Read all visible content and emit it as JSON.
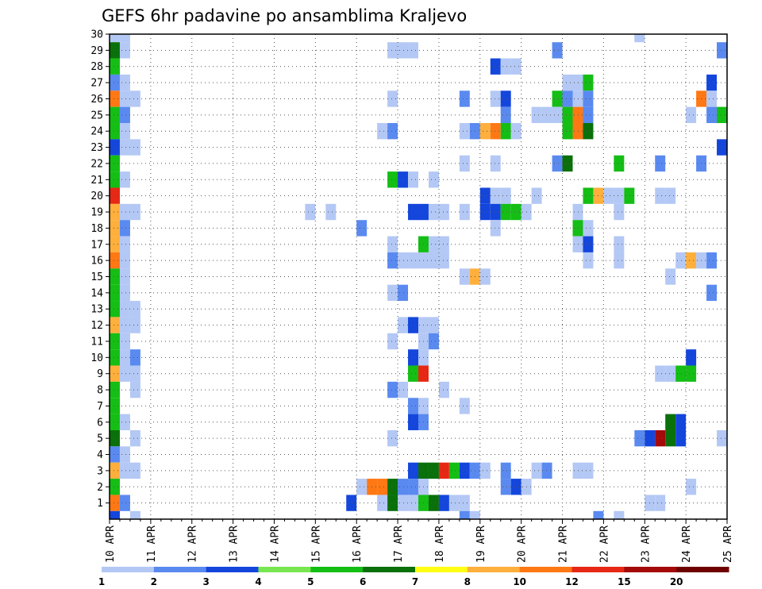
{
  "chart_data": {
    "type": "heatmap",
    "title": "GEFS 6hr padavine po ansamblima Kraljevo",
    "xlabel": "",
    "ylabel": "",
    "x_ticks": [
      "10 APR",
      "11 APR",
      "12 APR",
      "13 APR",
      "14 APR",
      "15 APR",
      "16 APR",
      "17 APR",
      "18 APR",
      "19 APR",
      "20 APR",
      "21 APR",
      "22 APR",
      "23 APR",
      "24 APR",
      "25 APR"
    ],
    "y_ticks": [
      "1",
      "2",
      "3",
      "4",
      "5",
      "6",
      "7",
      "8",
      "9",
      "10",
      "11",
      "12",
      "13",
      "14",
      "15",
      "16",
      "17",
      "18",
      "19",
      "20",
      "21",
      "22",
      "23",
      "24",
      "25",
      "26",
      "27",
      "28",
      "29",
      "30"
    ],
    "xlim": [
      0,
      15
    ],
    "ylim": [
      0,
      30
    ],
    "cell_width_days": 0.25,
    "grid": true,
    "colorbar": {
      "labels": [
        "1",
        "2",
        "3",
        "4",
        "5",
        "6",
        "7",
        "8",
        "10",
        "12",
        "15",
        "20"
      ],
      "colors": [
        "#b4c8f5",
        "#5a8af0",
        "#1446dc",
        "#78e650",
        "#14be14",
        "#0a700a",
        "#ffff14",
        "#ffaf3c",
        "#ff7814",
        "#e62814",
        "#a50a0a",
        "#6e0000"
      ]
    },
    "cells": [
      [
        0.0,
        30,
        1
      ],
      [
        0.25,
        30,
        1
      ],
      [
        12.75,
        30,
        1
      ],
      [
        0.0,
        29,
        6
      ],
      [
        0.25,
        29,
        1
      ],
      [
        6.75,
        29,
        1
      ],
      [
        7.0,
        29,
        1
      ],
      [
        7.25,
        29,
        1
      ],
      [
        10.75,
        29,
        2
      ],
      [
        14.75,
        29,
        2
      ],
      [
        0.0,
        28,
        5
      ],
      [
        9.25,
        28,
        3
      ],
      [
        9.5,
        28,
        1
      ],
      [
        9.75,
        28,
        1
      ],
      [
        0.0,
        27,
        2
      ],
      [
        0.25,
        27,
        1
      ],
      [
        11.0,
        27,
        1
      ],
      [
        11.25,
        27,
        1
      ],
      [
        11.5,
        27,
        5
      ],
      [
        14.5,
        27,
        3
      ],
      [
        0.0,
        26,
        9
      ],
      [
        0.25,
        26,
        1
      ],
      [
        0.5,
        26,
        1
      ],
      [
        6.75,
        26,
        1
      ],
      [
        8.5,
        26,
        2
      ],
      [
        9.25,
        26,
        1
      ],
      [
        9.5,
        26,
        3
      ],
      [
        10.75,
        26,
        5
      ],
      [
        11.0,
        26,
        2
      ],
      [
        11.25,
        26,
        1
      ],
      [
        11.5,
        26,
        2
      ],
      [
        14.25,
        26,
        9
      ],
      [
        14.5,
        26,
        1
      ],
      [
        0.0,
        25,
        5
      ],
      [
        0.25,
        25,
        2
      ],
      [
        9.5,
        25,
        2
      ],
      [
        10.25,
        25,
        1
      ],
      [
        10.5,
        25,
        1
      ],
      [
        10.75,
        25,
        1
      ],
      [
        11.0,
        25,
        5
      ],
      [
        11.25,
        25,
        9
      ],
      [
        11.5,
        25,
        2
      ],
      [
        14.0,
        25,
        1
      ],
      [
        14.5,
        25,
        2
      ],
      [
        14.75,
        25,
        5
      ],
      [
        0.0,
        24,
        5
      ],
      [
        0.25,
        24,
        1
      ],
      [
        6.5,
        24,
        1
      ],
      [
        6.75,
        24,
        2
      ],
      [
        8.5,
        24,
        1
      ],
      [
        8.75,
        24,
        2
      ],
      [
        9.0,
        24,
        8
      ],
      [
        9.25,
        24,
        9
      ],
      [
        9.5,
        24,
        5
      ],
      [
        9.75,
        24,
        1
      ],
      [
        11.0,
        24,
        5
      ],
      [
        11.25,
        24,
        9
      ],
      [
        11.5,
        24,
        6
      ],
      [
        0.0,
        23,
        3
      ],
      [
        0.25,
        23,
        1
      ],
      [
        0.5,
        23,
        1
      ],
      [
        14.75,
        23,
        3
      ],
      [
        0.0,
        22,
        5
      ],
      [
        8.5,
        22,
        1
      ],
      [
        9.25,
        22,
        1
      ],
      [
        10.75,
        22,
        2
      ],
      [
        11.0,
        22,
        6
      ],
      [
        12.25,
        22,
        5
      ],
      [
        13.25,
        22,
        2
      ],
      [
        14.25,
        22,
        2
      ],
      [
        0.0,
        21,
        5
      ],
      [
        0.25,
        21,
        1
      ],
      [
        6.75,
        21,
        5
      ],
      [
        7.0,
        21,
        3
      ],
      [
        7.25,
        21,
        1
      ],
      [
        7.75,
        21,
        1
      ],
      [
        0.0,
        20,
        10
      ],
      [
        9.0,
        20,
        3
      ],
      [
        9.25,
        20,
        1
      ],
      [
        9.5,
        20,
        1
      ],
      [
        10.25,
        20,
        1
      ],
      [
        11.5,
        20,
        5
      ],
      [
        11.75,
        20,
        8
      ],
      [
        12.0,
        20,
        1
      ],
      [
        12.25,
        20,
        1
      ],
      [
        12.5,
        20,
        5
      ],
      [
        13.25,
        20,
        1
      ],
      [
        13.5,
        20,
        1
      ],
      [
        0.0,
        19,
        8
      ],
      [
        0.25,
        19,
        1
      ],
      [
        0.5,
        19,
        1
      ],
      [
        4.75,
        19,
        1
      ],
      [
        5.25,
        19,
        1
      ],
      [
        7.25,
        19,
        3
      ],
      [
        7.5,
        19,
        3
      ],
      [
        7.75,
        19,
        1
      ],
      [
        8.0,
        19,
        1
      ],
      [
        8.5,
        19,
        1
      ],
      [
        9.0,
        19,
        3
      ],
      [
        9.25,
        19,
        3
      ],
      [
        9.5,
        19,
        5
      ],
      [
        9.75,
        19,
        5
      ],
      [
        10.0,
        19,
        1
      ],
      [
        11.25,
        19,
        1
      ],
      [
        12.25,
        19,
        1
      ],
      [
        0.0,
        18,
        8
      ],
      [
        0.25,
        18,
        2
      ],
      [
        6.0,
        18,
        2
      ],
      [
        9.25,
        18,
        1
      ],
      [
        11.25,
        18,
        5
      ],
      [
        11.5,
        18,
        1
      ],
      [
        0.0,
        17,
        8
      ],
      [
        0.25,
        17,
        1
      ],
      [
        6.75,
        17,
        1
      ],
      [
        7.5,
        17,
        5
      ],
      [
        7.75,
        17,
        1
      ],
      [
        8.0,
        17,
        1
      ],
      [
        11.25,
        17,
        1
      ],
      [
        11.5,
        17,
        3
      ],
      [
        12.25,
        17,
        1
      ],
      [
        0.0,
        16,
        9
      ],
      [
        0.25,
        16,
        1
      ],
      [
        6.75,
        16,
        2
      ],
      [
        7.0,
        16,
        1
      ],
      [
        7.25,
        16,
        1
      ],
      [
        7.5,
        16,
        1
      ],
      [
        7.75,
        16,
        1
      ],
      [
        8.0,
        16,
        1
      ],
      [
        11.5,
        16,
        1
      ],
      [
        12.25,
        16,
        1
      ],
      [
        13.75,
        16,
        1
      ],
      [
        14.0,
        16,
        8
      ],
      [
        14.25,
        16,
        1
      ],
      [
        14.5,
        16,
        2
      ],
      [
        0.0,
        15,
        5
      ],
      [
        0.25,
        15,
        1
      ],
      [
        8.5,
        15,
        1
      ],
      [
        8.75,
        15,
        8
      ],
      [
        9.0,
        15,
        1
      ],
      [
        13.5,
        15,
        1
      ],
      [
        0.0,
        14,
        5
      ],
      [
        0.25,
        14,
        1
      ],
      [
        6.75,
        14,
        1
      ],
      [
        7.0,
        14,
        2
      ],
      [
        14.5,
        14,
        2
      ],
      [
        0.0,
        13,
        5
      ],
      [
        0.25,
        13,
        1
      ],
      [
        0.5,
        13,
        1
      ],
      [
        0.0,
        12,
        8
      ],
      [
        0.25,
        12,
        1
      ],
      [
        0.5,
        12,
        1
      ],
      [
        7.0,
        12,
        1
      ],
      [
        7.25,
        12,
        3
      ],
      [
        7.5,
        12,
        1
      ],
      [
        7.75,
        12,
        1
      ],
      [
        0.0,
        11,
        5
      ],
      [
        0.25,
        11,
        1
      ],
      [
        6.75,
        11,
        1
      ],
      [
        7.5,
        11,
        1
      ],
      [
        7.75,
        11,
        2
      ],
      [
        0.0,
        10,
        5
      ],
      [
        0.25,
        10,
        1
      ],
      [
        0.5,
        10,
        2
      ],
      [
        7.25,
        10,
        3
      ],
      [
        7.5,
        10,
        1
      ],
      [
        14.0,
        10,
        3
      ],
      [
        0.0,
        9,
        8
      ],
      [
        0.25,
        9,
        1
      ],
      [
        0.5,
        9,
        1
      ],
      [
        7.25,
        9,
        5
      ],
      [
        7.5,
        9,
        10
      ],
      [
        13.25,
        9,
        1
      ],
      [
        13.5,
        9,
        1
      ],
      [
        13.75,
        9,
        5
      ],
      [
        14.0,
        9,
        5
      ],
      [
        0.0,
        8,
        5
      ],
      [
        0.5,
        8,
        1
      ],
      [
        6.75,
        8,
        2
      ],
      [
        7.0,
        8,
        1
      ],
      [
        8.0,
        8,
        1
      ],
      [
        0.0,
        7,
        5
      ],
      [
        7.25,
        7,
        2
      ],
      [
        7.5,
        7,
        1
      ],
      [
        8.5,
        7,
        1
      ],
      [
        0.0,
        6,
        5
      ],
      [
        0.25,
        6,
        1
      ],
      [
        7.25,
        6,
        3
      ],
      [
        7.5,
        6,
        2
      ],
      [
        13.5,
        6,
        6
      ],
      [
        13.75,
        6,
        3
      ],
      [
        0.0,
        5,
        6
      ],
      [
        0.5,
        5,
        1
      ],
      [
        6.75,
        5,
        1
      ],
      [
        12.75,
        5,
        2
      ],
      [
        13.0,
        5,
        3
      ],
      [
        13.25,
        5,
        11
      ],
      [
        13.5,
        5,
        6
      ],
      [
        13.75,
        5,
        3
      ],
      [
        14.75,
        5,
        1
      ],
      [
        0.0,
        4,
        2
      ],
      [
        0.25,
        4,
        1
      ],
      [
        0.0,
        3,
        8
      ],
      [
        0.25,
        3,
        1
      ],
      [
        0.5,
        3,
        1
      ],
      [
        7.25,
        3,
        3
      ],
      [
        7.5,
        3,
        6
      ],
      [
        7.75,
        3,
        6
      ],
      [
        8.0,
        3,
        10
      ],
      [
        8.25,
        3,
        5
      ],
      [
        8.5,
        3,
        3
      ],
      [
        8.75,
        3,
        2
      ],
      [
        9.0,
        3,
        1
      ],
      [
        9.5,
        3,
        2
      ],
      [
        10.25,
        3,
        1
      ],
      [
        10.5,
        3,
        2
      ],
      [
        11.25,
        3,
        1
      ],
      [
        11.5,
        3,
        1
      ],
      [
        0.0,
        2,
        5
      ],
      [
        6.0,
        2,
        1
      ],
      [
        6.25,
        2,
        9
      ],
      [
        6.5,
        2,
        9
      ],
      [
        6.75,
        2,
        6
      ],
      [
        7.0,
        2,
        2
      ],
      [
        7.25,
        2,
        2
      ],
      [
        7.5,
        2,
        1
      ],
      [
        9.5,
        2,
        2
      ],
      [
        9.75,
        2,
        3
      ],
      [
        10.0,
        2,
        1
      ],
      [
        14.0,
        2,
        1
      ],
      [
        0.0,
        1,
        9
      ],
      [
        0.25,
        1,
        2
      ],
      [
        5.75,
        1,
        3
      ],
      [
        6.5,
        1,
        1
      ],
      [
        6.75,
        1,
        6
      ],
      [
        7.0,
        1,
        1
      ],
      [
        7.25,
        1,
        1
      ],
      [
        7.5,
        1,
        5
      ],
      [
        7.75,
        1,
        6
      ],
      [
        8.0,
        1,
        3
      ],
      [
        8.25,
        1,
        1
      ],
      [
        8.5,
        1,
        1
      ],
      [
        13.0,
        1,
        1
      ],
      [
        13.25,
        1,
        1
      ],
      [
        0.0,
        0,
        3
      ],
      [
        0.5,
        0,
        1
      ],
      [
        8.5,
        0,
        2
      ],
      [
        8.75,
        0,
        1
      ],
      [
        11.75,
        0,
        2
      ],
      [
        12.25,
        0,
        1
      ]
    ]
  }
}
